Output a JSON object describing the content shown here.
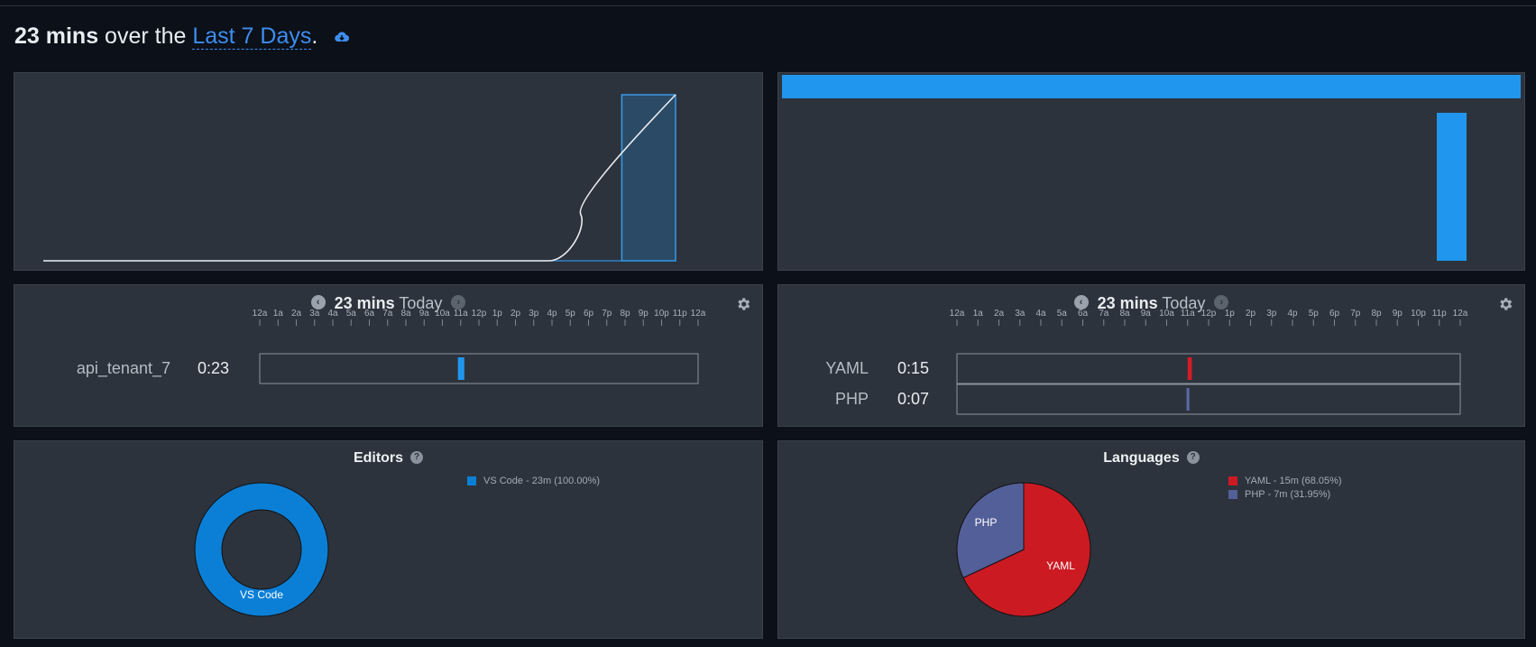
{
  "header": {
    "total": "23 mins",
    "mid": " over the ",
    "range": "Last 7 Days",
    "end": ".",
    "icon": "cloud-download-icon"
  },
  "activity_chart": {
    "type": "area",
    "curve_points": [
      [
        0,
        0
      ],
      [
        0.8,
        0
      ],
      [
        0.85,
        0.28
      ],
      [
        0.9,
        0.62
      ],
      [
        1,
        1
      ]
    ],
    "highlight_range": [
      0.915,
      1
    ],
    "line_color": "#e8ecf0",
    "baseline_color": "#2e8ee0",
    "highlight_fill": "#2a4a66",
    "highlight_stroke": "#3a9be8"
  },
  "bar_chart": {
    "type": "bar",
    "top_bar_fraction": 1.0,
    "bar_value_fraction": 1.0,
    "bar_color": "#2196ef"
  },
  "projects_timeline": {
    "nav": {
      "total": "23 mins",
      "day": "Today"
    },
    "hour_labels": [
      "12a",
      "1a",
      "2a",
      "3a",
      "4a",
      "5a",
      "6a",
      "7a",
      "8a",
      "9a",
      "10a",
      "11a",
      "12p",
      "1p",
      "2p",
      "3p",
      "4p",
      "5p",
      "6p",
      "7p",
      "8p",
      "9p",
      "10p",
      "11p",
      "12a"
    ],
    "rows": [
      {
        "label": "api_tenant_7",
        "time": "0:23",
        "color": "#2196ef",
        "start_hour": 10.85,
        "end_hour": 11.2
      }
    ]
  },
  "languages_timeline": {
    "nav": {
      "total": "23 mins",
      "day": "Today"
    },
    "hour_labels": [
      "12a",
      "1a",
      "2a",
      "3a",
      "4a",
      "5a",
      "6a",
      "7a",
      "8a",
      "9a",
      "10a",
      "11a",
      "12p",
      "1p",
      "2p",
      "3p",
      "4p",
      "5p",
      "6p",
      "7p",
      "8p",
      "9p",
      "10p",
      "11p",
      "12a"
    ],
    "rows": [
      {
        "label": "YAML",
        "time": "0:15",
        "color": "#d41d27",
        "start_hour": 11.0,
        "end_hour": 11.2
      },
      {
        "label": "PHP",
        "time": "0:07",
        "color": "#5b6aa8",
        "start_hour": 10.95,
        "end_hour": 11.05
      }
    ]
  },
  "editors": {
    "title": "Editors",
    "chart_data": {
      "type": "pie",
      "donut": true,
      "slices": [
        {
          "name": "VS Code",
          "value": 100.0,
          "color": "#0b7fd6"
        }
      ]
    },
    "slice_labels": [
      "VS Code"
    ],
    "legend": [
      "VS Code - 23m (100.00%)"
    ]
  },
  "languages": {
    "title": "Languages",
    "chart_data": {
      "type": "pie",
      "slices": [
        {
          "name": "YAML",
          "value": 68.05,
          "color": "#cc1a23"
        },
        {
          "name": "PHP",
          "value": 31.95,
          "color": "#535f98"
        }
      ]
    },
    "slice_labels": [
      "YAML",
      "PHP"
    ],
    "legend": [
      "YAML - 15m (68.05%)",
      "PHP - 7m (31.95%)"
    ]
  }
}
